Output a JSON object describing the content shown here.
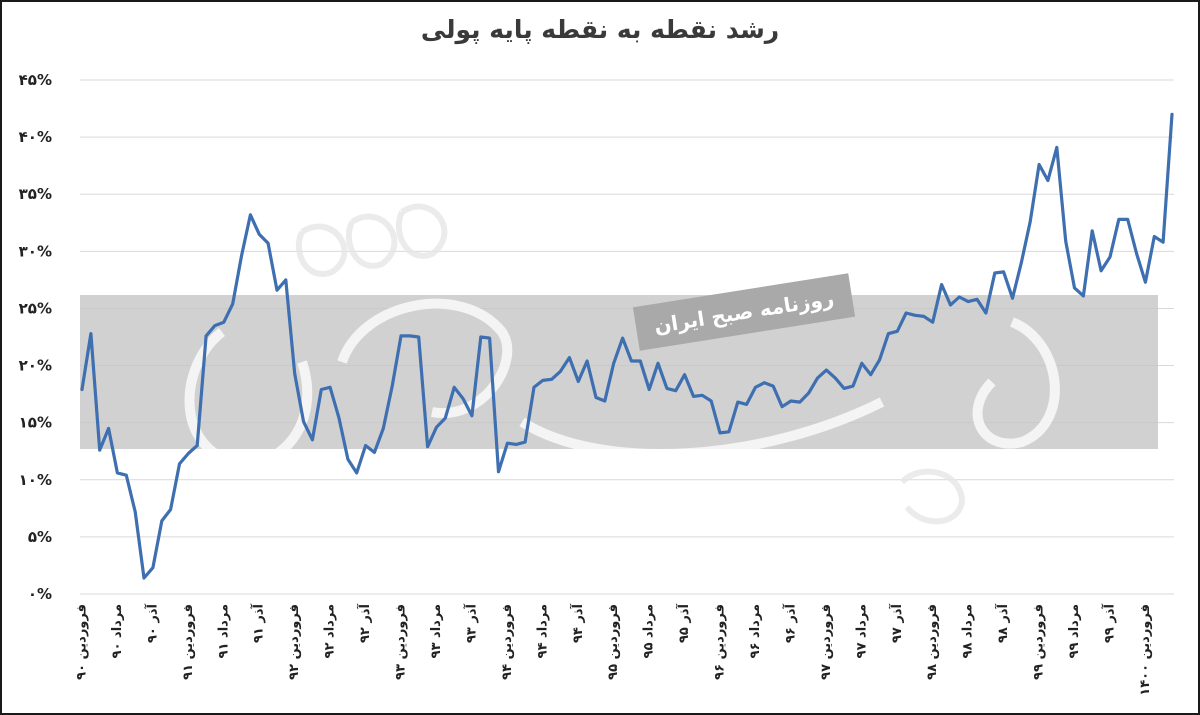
{
  "chart_data": {
    "type": "line",
    "title": "رشد نقطه به نقطه پایه پولی",
    "y_unit": "%",
    "ylim": [
      0,
      45
    ],
    "y_ticks": [
      0,
      5,
      10,
      15,
      20,
      25,
      30,
      35,
      40,
      45
    ],
    "y_tick_labels": [
      "۰%",
      "۵%",
      "۱۰%",
      "۱۵%",
      "۲۰%",
      "۲۵%",
      "۳۰%",
      "۳۵%",
      "۴۰%",
      "۴۵%"
    ],
    "grid": true,
    "legend": "none",
    "x_tick_labels": [
      {
        "index": 0,
        "label": "فروردین ۹۰"
      },
      {
        "index": 4,
        "label": "مرداد ۹۰"
      },
      {
        "index": 8,
        "label": "آذر ۹۰"
      },
      {
        "index": 12,
        "label": "فروردین ۹۱"
      },
      {
        "index": 16,
        "label": "مرداد ۹۱"
      },
      {
        "index": 20,
        "label": "آذر ۹۱"
      },
      {
        "index": 24,
        "label": "فروردین ۹۲"
      },
      {
        "index": 28,
        "label": "مرداد ۹۲"
      },
      {
        "index": 32,
        "label": "آذر ۹۲"
      },
      {
        "index": 36,
        "label": "فروردین ۹۳"
      },
      {
        "index": 40,
        "label": "مرداد ۹۳"
      },
      {
        "index": 44,
        "label": "آذر ۹۳"
      },
      {
        "index": 48,
        "label": "فروردین ۹۴"
      },
      {
        "index": 52,
        "label": "مرداد ۹۴"
      },
      {
        "index": 56,
        "label": "آذر ۹۴"
      },
      {
        "index": 60,
        "label": "فروردین ۹۵"
      },
      {
        "index": 64,
        "label": "مرداد ۹۵"
      },
      {
        "index": 68,
        "label": "آذر ۹۵"
      },
      {
        "index": 72,
        "label": "فروردین ۹۶"
      },
      {
        "index": 76,
        "label": "مرداد ۹۶"
      },
      {
        "index": 80,
        "label": "آذر ۹۶"
      },
      {
        "index": 84,
        "label": "فروردین ۹۷"
      },
      {
        "index": 88,
        "label": "مرداد ۹۷"
      },
      {
        "index": 92,
        "label": "آذر ۹۷"
      },
      {
        "index": 96,
        "label": "فروردین ۹۸"
      },
      {
        "index": 100,
        "label": "مرداد ۹۸"
      },
      {
        "index": 104,
        "label": "آذر ۹۸"
      },
      {
        "index": 108,
        "label": "فروردین ۹۹"
      },
      {
        "index": 112,
        "label": "مرداد ۹۹"
      },
      {
        "index": 116,
        "label": "آذر ۹۹"
      },
      {
        "index": 120,
        "label": "فروردین ۱۴۰۰"
      }
    ],
    "series": [
      {
        "color": "#3e6fb0",
        "values": [
          17.9,
          22.8,
          12.6,
          14.5,
          10.6,
          10.4,
          7.2,
          1.4,
          2.3,
          6.4,
          7.4,
          11.4,
          12.3,
          13.0,
          22.6,
          23.5,
          23.8,
          25.4,
          29.6,
          33.2,
          31.5,
          30.7,
          26.6,
          27.5,
          19.3,
          15.1,
          13.5,
          17.9,
          18.1,
          15.4,
          11.8,
          10.6,
          13.0,
          12.4,
          14.5,
          18.2,
          22.6,
          22.6,
          22.5,
          12.9,
          14.6,
          15.4,
          18.1,
          17.1,
          15.6,
          22.5,
          22.4,
          10.7,
          13.2,
          13.1,
          13.3,
          18.1,
          18.7,
          18.8,
          19.5,
          20.7,
          18.6,
          20.4,
          17.2,
          16.9,
          20.2,
          22.4,
          20.4,
          20.4,
          17.9,
          20.2,
          18.0,
          17.8,
          19.2,
          17.3,
          17.4,
          16.9,
          14.1,
          14.2,
          16.8,
          16.6,
          18.1,
          18.5,
          18.2,
          16.4,
          16.9,
          16.8,
          17.6,
          18.9,
          19.6,
          18.9,
          18.0,
          18.2,
          20.2,
          19.2,
          20.5,
          22.8,
          23.0,
          24.6,
          24.4,
          24.3,
          23.8,
          27.1,
          25.3,
          26.0,
          25.6,
          25.8,
          24.6,
          28.1,
          28.2,
          25.9,
          29.0,
          32.6,
          37.6,
          36.2,
          39.1,
          30.9,
          26.8,
          26.1,
          31.8,
          28.3,
          29.5,
          32.8,
          32.8,
          29.8,
          27.3,
          31.3,
          30.8,
          42.0
        ]
      }
    ]
  },
  "watermark": {
    "label": "روزنامه صبح ایران"
  }
}
